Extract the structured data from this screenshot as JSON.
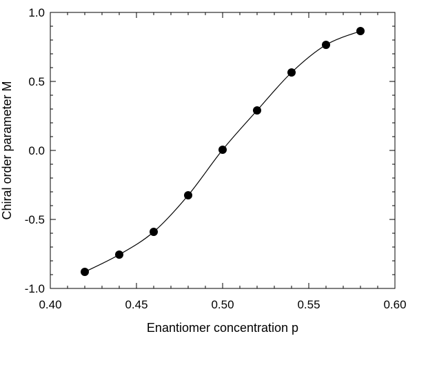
{
  "chart_data": {
    "type": "scatter",
    "xlabel": "Enantiomer concentration p",
    "ylabel": "Chiral order parameter M",
    "xlim": [
      0.4,
      0.6
    ],
    "ylim": [
      -1.0,
      1.0
    ],
    "x_ticks": [
      "0.40",
      "0.45",
      "0.50",
      "0.55",
      "0.60"
    ],
    "y_ticks": [
      "1.0",
      "0.5",
      "0.0",
      "-0.5",
      "-1.0"
    ],
    "grid": false,
    "series": [
      {
        "marker": "filled-circle",
        "color": "#000000",
        "fit_line": true,
        "x": [
          0.42,
          0.44,
          0.46,
          0.48,
          0.5,
          0.52,
          0.54,
          0.56,
          0.58
        ],
        "y": [
          -0.88,
          -0.755,
          -0.59,
          -0.325,
          0.005,
          0.29,
          0.565,
          0.765,
          0.865
        ]
      }
    ]
  }
}
